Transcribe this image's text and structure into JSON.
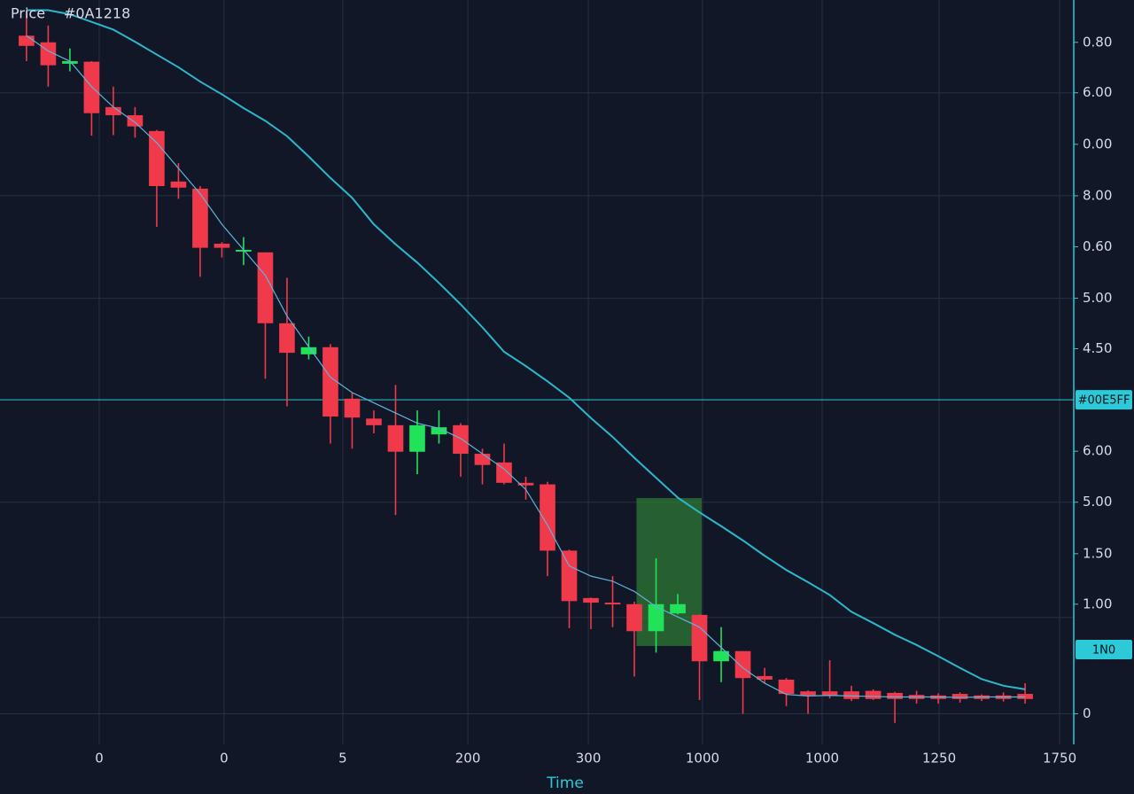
{
  "chart_data": {
    "type": "candlestick",
    "title": "Price",
    "subtitle": "#0A1218",
    "xlabel": "Time",
    "x": [
      0,
      1,
      2,
      3,
      4,
      5,
      6,
      7,
      8,
      9,
      10,
      11,
      12,
      13,
      14,
      15,
      16,
      17,
      18,
      19,
      20,
      21,
      22,
      23,
      24,
      25,
      26,
      27,
      28,
      29,
      30,
      31,
      32,
      33,
      34,
      35,
      36,
      37,
      38,
      39,
      40,
      41,
      42,
      43,
      44,
      45,
      46
    ],
    "open": [
      13.3,
      13.17,
      12.75,
      12.79,
      11.9,
      11.74,
      11.43,
      10.44,
      10.3,
      9.22,
      9.08,
      9.05,
      7.66,
      7.05,
      7.19,
      6.18,
      5.79,
      5.66,
      5.14,
      5.48,
      5.66,
      5.1,
      4.93,
      4.53,
      4.5,
      3.2,
      2.27,
      2.18,
      2.15,
      1.62,
      1.97,
      1.94,
      1.03,
      1.23,
      0.74,
      0.67,
      0.44,
      0.44,
      0.44,
      0.45,
      0.41,
      0.37,
      0.36,
      0.39,
      0.36,
      0.36,
      0.39
    ],
    "high": [
      13.8,
      13.5,
      13.05,
      12.8,
      12.3,
      11.9,
      11.45,
      10.8,
      10.35,
      9.25,
      9.35,
      9.05,
      8.55,
      7.4,
      7.25,
      6.3,
      5.95,
      6.45,
      5.95,
      5.95,
      5.7,
      5.2,
      5.3,
      4.65,
      4.55,
      3.22,
      2.28,
      2.7,
      2.2,
      3.05,
      2.35,
      1.95,
      1.7,
      1.23,
      0.9,
      0.7,
      0.46,
      1.05,
      0.55,
      0.48,
      0.43,
      0.45,
      0.4,
      0.42,
      0.38,
      0.42,
      0.6
    ],
    "low": [
      12.8,
      12.3,
      12.6,
      11.34,
      11.35,
      11.3,
      9.55,
      10.1,
      8.57,
      8.95,
      8.8,
      6.57,
      6.03,
      6.95,
      5.3,
      5.2,
      5.5,
      3.9,
      4.7,
      5.3,
      4.65,
      4.5,
      4.5,
      4.2,
      2.7,
      1.68,
      1.66,
      1.7,
      0.73,
      1.2,
      1.95,
      0.27,
      0.62,
      0.0,
      0.6,
      0.15,
      0.0,
      0.3,
      0.25,
      0.27,
      -0.18,
      0.2,
      0.2,
      0.22,
      0.25,
      0.24,
      0.2
    ],
    "close": [
      13.1,
      12.72,
      12.8,
      11.78,
      11.74,
      11.52,
      10.35,
      10.32,
      9.14,
      9.14,
      9.1,
      7.66,
      7.08,
      7.19,
      5.83,
      5.81,
      5.66,
      5.14,
      5.66,
      5.62,
      5.1,
      4.88,
      4.53,
      4.48,
      3.2,
      2.21,
      2.18,
      2.15,
      1.62,
      2.15,
      2.15,
      1.03,
      1.23,
      0.7,
      0.67,
      0.39,
      0.36,
      0.36,
      0.29,
      0.29,
      0.29,
      0.29,
      0.29,
      0.29,
      0.29,
      0.29,
      0.29
    ],
    "up_color": "#22e25a",
    "down_color": "#f0394a",
    "lines": [
      {
        "color": "#5fb4dc",
        "width": 1.2,
        "values": [
          13.3,
          13.0,
          12.8,
          12.3,
          11.9,
          11.6,
          11.2,
          10.7,
          10.2,
          9.6,
          9.1,
          8.6,
          7.8,
          7.2,
          6.6,
          6.3,
          6.1,
          5.9,
          5.7,
          5.6,
          5.4,
          5.1,
          4.8,
          4.4,
          3.7,
          2.9,
          2.7,
          2.6,
          2.4,
          2.1,
          1.9,
          1.7,
          1.3,
          0.9,
          0.6,
          0.38,
          0.35,
          0.36,
          0.35,
          0.34,
          0.33,
          0.33,
          0.33,
          0.32,
          0.33,
          0.33,
          0.33
        ]
      },
      {
        "color": "#2cb8cc",
        "width": 2,
        "values": [
          13.8,
          13.8,
          13.72,
          13.57,
          13.42,
          13.18,
          12.93,
          12.68,
          12.4,
          12.15,
          11.88,
          11.63,
          11.33,
          10.93,
          10.51,
          10.12,
          9.6,
          9.21,
          8.85,
          8.45,
          8.03,
          7.58,
          7.1,
          6.82,
          6.52,
          6.2,
          5.8,
          5.43,
          5.02,
          4.63,
          4.24,
          3.95,
          3.68,
          3.4,
          3.1,
          2.82,
          2.58,
          2.33,
          2.0,
          1.78,
          1.55,
          1.35,
          1.13,
          0.9,
          0.68,
          0.55,
          0.48
        ]
      }
    ],
    "highlight": {
      "xlim": [
        28.1,
        31.1
      ],
      "ylim": [
        1.33,
        4.23
      ],
      "color": "#2f7a34"
    },
    "price_line": {
      "value": 6.16,
      "label": "#00E5FF",
      "color": "#2cc9d8"
    },
    "last_price": {
      "value": 1.26,
      "label": "1N0",
      "color": "#2cc9d8"
    },
    "xlim": [
      -1.22,
      48.24
    ],
    "xticks": [
      {
        "value": 3.35,
        "label": "0"
      },
      {
        "value": 9.1,
        "label": "0"
      },
      {
        "value": 14.57,
        "label": "5"
      },
      {
        "value": 20.33,
        "label": "200"
      },
      {
        "value": 25.88,
        "label": "300"
      },
      {
        "value": 31.14,
        "label": "1000"
      },
      {
        "value": 36.65,
        "label": "1000"
      },
      {
        "value": 42.04,
        "label": "1250"
      },
      {
        "value": 47.59,
        "label": "1750"
      }
    ],
    "ylim": [
      -0.6,
      14
    ],
    "yticks": [
      0,
      {
        "value": 2.15,
        "label": "1.00"
      },
      {
        "value": 3.14,
        "label": "1.50"
      },
      {
        "value": 4.15,
        "label": "5.00"
      },
      {
        "value": 5.15,
        "label": "6.00"
      },
      {
        "value": 7.16,
        "label": "4.50"
      },
      {
        "value": 8.15,
        "label": "5.00"
      },
      {
        "value": 9.16,
        "label": "0.60"
      },
      {
        "value": 10.16,
        "label": "8.00"
      },
      {
        "value": 11.17,
        "label": "0.00"
      },
      {
        "value": 12.18,
        "label": "6.00"
      },
      {
        "value": 13.17,
        "label": "0.80"
      }
    ],
    "ygrid": [
      0,
      1.89,
      4.15,
      8.15,
      10.16,
      12.18
    ],
    "grid": true
  }
}
